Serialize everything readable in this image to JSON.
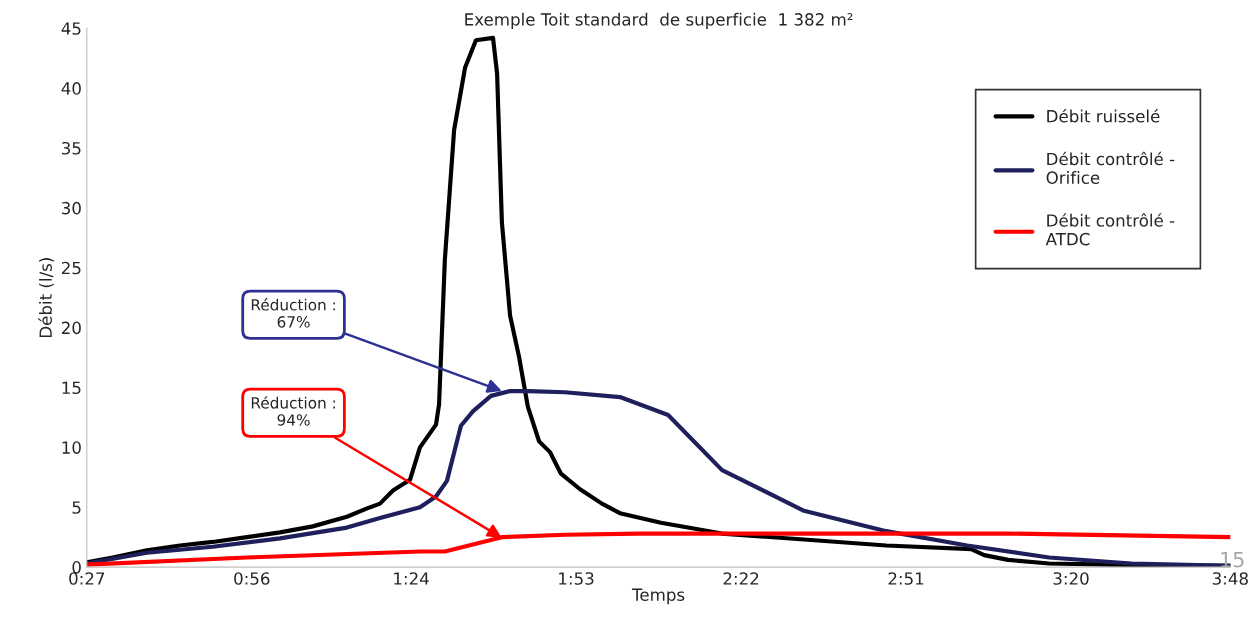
{
  "chart_data": {
    "type": "line",
    "title": "Exemple Toit standard  de superficie  1 382 m²",
    "xlabel": "Temps",
    "ylabel": "Débit (l/s)",
    "xlim": [
      0.45,
      3.8
    ],
    "ylim": [
      0,
      45
    ],
    "xticks": [
      {
        "value": 0.45,
        "label": "0:27"
      },
      {
        "value": 0.9333,
        "label": "0:56"
      },
      {
        "value": 1.4,
        "label": "1:24"
      },
      {
        "value": 1.8833,
        "label": "1:53"
      },
      {
        "value": 2.3667,
        "label": "2:22"
      },
      {
        "value": 2.85,
        "label": "2:51"
      },
      {
        "value": 3.3333,
        "label": "3:20"
      },
      {
        "value": 3.8,
        "label": "3:48"
      }
    ],
    "yticks": [
      0,
      5,
      10,
      15,
      20,
      25,
      30,
      35,
      40,
      45
    ],
    "grid": false,
    "legend": "right",
    "marker": "none",
    "line_style": "solid",
    "series": [
      {
        "name": "Débit ruisselé",
        "color": "#000000",
        "x": [
          0.45,
          0.526,
          0.626,
          0.723,
          0.819,
          0.919,
          1.016,
          1.112,
          1.212,
          1.271,
          1.309,
          1.347,
          1.397,
          1.426,
          1.473,
          1.482,
          1.499,
          1.526,
          1.558,
          1.59,
          1.64,
          1.652,
          1.666,
          1.69,
          1.716,
          1.742,
          1.775,
          1.807,
          1.839,
          1.895,
          1.959,
          2.012,
          2.132,
          2.311,
          2.551,
          2.792,
          3.041,
          3.079,
          3.149,
          3.269,
          3.448,
          3.8
        ],
        "values": [
          0.4,
          0.8,
          1.4,
          1.8,
          2.1,
          2.5,
          2.9,
          3.4,
          4.2,
          4.9,
          5.3,
          6.4,
          7.3,
          10.0,
          11.9,
          13.6,
          25.7,
          36.5,
          41.7,
          44.0,
          44.2,
          41.2,
          28.8,
          21.0,
          17.6,
          13.4,
          10.5,
          9.6,
          7.8,
          6.5,
          5.3,
          4.5,
          3.7,
          2.8,
          2.3,
          1.8,
          1.5,
          1.0,
          0.6,
          0.3,
          0.2,
          0.1
        ]
      },
      {
        "name": "Débit contrôlé - \nOrifice",
        "color": "#1f1f5c",
        "x": [
          0.45,
          0.626,
          0.819,
          1.016,
          1.212,
          1.309,
          1.426,
          1.473,
          1.505,
          1.546,
          1.581,
          1.634,
          1.69,
          1.742,
          1.851,
          2.012,
          2.153,
          2.311,
          2.551,
          2.792,
          3.029,
          3.269,
          3.51,
          3.8
        ],
        "values": [
          0.3,
          1.2,
          1.7,
          2.4,
          3.3,
          4.1,
          5.0,
          5.9,
          7.2,
          11.8,
          13.0,
          14.3,
          14.7,
          14.7,
          14.6,
          14.2,
          12.7,
          8.1,
          4.7,
          3.0,
          1.8,
          0.8,
          0.3,
          0.1
        ]
      },
      {
        "name": "Débit contrôlé - \nATDC",
        "color": "#ff0000",
        "x": [
          0.45,
          0.919,
          1.426,
          1.499,
          1.666,
          1.851,
          2.068,
          2.311,
          3.149,
          3.8
        ],
        "values": [
          0.2,
          0.8,
          1.3,
          1.3,
          2.5,
          2.7,
          2.8,
          2.8,
          2.8,
          2.5
        ]
      }
    ],
    "annotations": [
      {
        "text": "Réduction :\n67%",
        "x": 1.666,
        "y": 14.7
      },
      {
        "text": "Réduction :\n94%",
        "x": 1.666,
        "y": 2.45
      },
      "15"
    ]
  }
}
